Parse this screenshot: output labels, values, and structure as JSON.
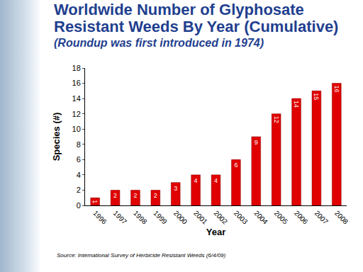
{
  "chart_data": {
    "type": "bar",
    "title": "Worldwide Number of Glyphosate Resistant Weeds By Year (Cumulative)",
    "subtitle": "(Roundup was first introduced in 1974)",
    "x_label": "Year",
    "y_label": "Species (#)",
    "categories": [
      "1996",
      "1997",
      "1998",
      "1999",
      "2000",
      "2001",
      "2002",
      "2003",
      "2004",
      "2005",
      "2006",
      "2007",
      "2008"
    ],
    "values": [
      1,
      2,
      2,
      2,
      3,
      4,
      4,
      6,
      9,
      12,
      14,
      15,
      16
    ],
    "color": "#e00000",
    "ylim": [
      0,
      18
    ],
    "yticks": [
      0,
      2,
      4,
      6,
      8,
      10,
      12,
      14,
      16,
      18
    ],
    "grid": false,
    "data_labels": true,
    "annotations": [
      "Source: International Survey of Herbicide Resistant Weeds (6/4/09)"
    ]
  }
}
